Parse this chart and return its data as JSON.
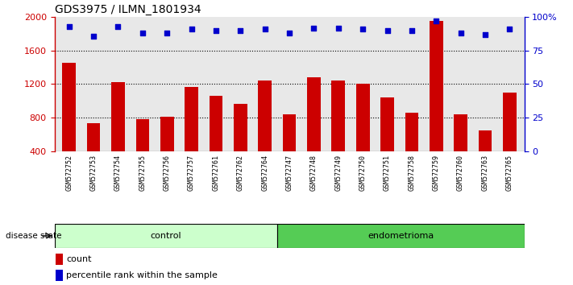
{
  "title": "GDS3975 / ILMN_1801934",
  "samples": [
    "GSM572752",
    "GSM572753",
    "GSM572754",
    "GSM572755",
    "GSM572756",
    "GSM572757",
    "GSM572761",
    "GSM572762",
    "GSM572764",
    "GSM572747",
    "GSM572748",
    "GSM572749",
    "GSM572750",
    "GSM572751",
    "GSM572758",
    "GSM572759",
    "GSM572760",
    "GSM572763",
    "GSM572765"
  ],
  "counts": [
    1450,
    730,
    1220,
    780,
    810,
    1170,
    1060,
    960,
    1240,
    840,
    1280,
    1240,
    1200,
    1040,
    860,
    1950,
    840,
    650,
    1100
  ],
  "percentiles": [
    93,
    86,
    93,
    88,
    88,
    91,
    90,
    90,
    91,
    88,
    92,
    92,
    91,
    90,
    90,
    97,
    88,
    87,
    91
  ],
  "groups": [
    "control",
    "control",
    "control",
    "control",
    "control",
    "control",
    "control",
    "control",
    "control",
    "endometrioma",
    "endometrioma",
    "endometrioma",
    "endometrioma",
    "endometrioma",
    "endometrioma",
    "endometrioma",
    "endometrioma",
    "endometrioma",
    "endometrioma"
  ],
  "bar_color": "#cc0000",
  "dot_color": "#0000cc",
  "control_bg": "#ccffcc",
  "endometrioma_bg": "#55cc55",
  "xtick_bg": "#d8d8d8",
  "ylim_left": [
    400,
    2000
  ],
  "ylim_right": [
    0,
    100
  ],
  "yticks_left": [
    400,
    800,
    1200,
    1600,
    2000
  ],
  "yticks_right": [
    0,
    25,
    50,
    75,
    100
  ],
  "ytick_labels_right": [
    "0",
    "25",
    "50",
    "75",
    "100%"
  ],
  "grid_values": [
    800,
    1200,
    1600
  ],
  "plot_bg": "#e8e8e8",
  "label_count": "count",
  "label_pct": "percentile rank within the sample",
  "group_label": "disease state",
  "n_control": 9,
  "n_endometrioma": 10
}
